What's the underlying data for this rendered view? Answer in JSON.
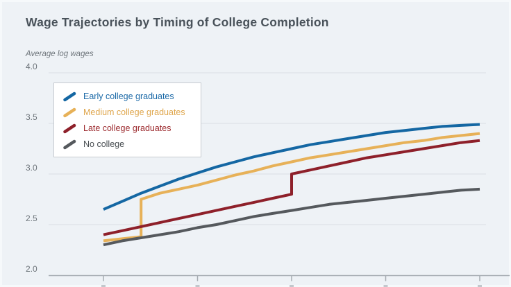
{
  "page": {
    "title": "Wage Trajectories by Timing of College Completion"
  },
  "chart_data": {
    "type": "line",
    "title": "Wage Trajectories by Timing of College Completion",
    "ylabel": "Average log wages",
    "xlabel": "",
    "ylim": [
      2.0,
      4.0
    ],
    "xlim": [
      0,
      20
    ],
    "grid": "horizontal",
    "legend_position": "top-left",
    "y_ticks": [
      {
        "value": 4.0,
        "label": "4.0"
      },
      {
        "value": 3.5,
        "label": "3.5"
      },
      {
        "value": 3.0,
        "label": "3.0"
      },
      {
        "value": 2.5,
        "label": "2.5"
      },
      {
        "value": 2.0,
        "label": "2.0"
      }
    ],
    "x_ticks": [
      0,
      5,
      10,
      15,
      20
    ],
    "x_tick_labels_visible": false,
    "series": [
      {
        "name": "Early college graduates",
        "color": "#1467a3",
        "label_color": "#1b69a7",
        "points": [
          [
            0,
            2.65
          ],
          [
            1,
            2.73
          ],
          [
            2,
            2.81
          ],
          [
            3,
            2.88
          ],
          [
            4,
            2.95
          ],
          [
            5,
            3.01
          ],
          [
            6,
            3.07
          ],
          [
            7,
            3.12
          ],
          [
            8,
            3.17
          ],
          [
            9,
            3.21
          ],
          [
            10,
            3.25
          ],
          [
            11,
            3.29
          ],
          [
            12,
            3.32
          ],
          [
            13,
            3.35
          ],
          [
            14,
            3.38
          ],
          [
            15,
            3.41
          ],
          [
            16,
            3.43
          ],
          [
            17,
            3.45
          ],
          [
            18,
            3.47
          ],
          [
            19,
            3.48
          ],
          [
            20,
            3.49
          ]
        ]
      },
      {
        "name": "Medium college graduates",
        "color": "#e7b158",
        "label_color": "#dfa64c",
        "jump_at_x": 2,
        "points": [
          [
            0,
            2.34
          ],
          [
            1,
            2.36
          ],
          [
            2,
            2.38
          ],
          [
            2,
            2.75
          ],
          [
            3,
            2.81
          ],
          [
            4,
            2.85
          ],
          [
            5,
            2.89
          ],
          [
            6,
            2.94
          ],
          [
            7,
            2.99
          ],
          [
            8,
            3.03
          ],
          [
            9,
            3.08
          ],
          [
            10,
            3.12
          ],
          [
            11,
            3.16
          ],
          [
            12,
            3.19
          ],
          [
            13,
            3.22
          ],
          [
            14,
            3.25
          ],
          [
            15,
            3.28
          ],
          [
            16,
            3.31
          ],
          [
            17,
            3.33
          ],
          [
            18,
            3.36
          ],
          [
            19,
            3.38
          ],
          [
            20,
            3.4
          ]
        ]
      },
      {
        "name": "Late college graduates",
        "color": "#8e202a",
        "label_color": "#9c2a2e",
        "jump_at_x": 10,
        "points": [
          [
            0,
            2.4
          ],
          [
            1,
            2.44
          ],
          [
            2,
            2.48
          ],
          [
            3,
            2.52
          ],
          [
            4,
            2.56
          ],
          [
            5,
            2.6
          ],
          [
            6,
            2.64
          ],
          [
            7,
            2.68
          ],
          [
            8,
            2.72
          ],
          [
            9,
            2.76
          ],
          [
            10,
            2.8
          ],
          [
            10,
            3.0
          ],
          [
            11,
            3.04
          ],
          [
            12,
            3.08
          ],
          [
            13,
            3.12
          ],
          [
            14,
            3.16
          ],
          [
            15,
            3.19
          ],
          [
            16,
            3.22
          ],
          [
            17,
            3.25
          ],
          [
            18,
            3.28
          ],
          [
            19,
            3.31
          ],
          [
            20,
            3.33
          ]
        ]
      },
      {
        "name": "No college",
        "color": "#55595d",
        "label_color": "#494e52",
        "points": [
          [
            0,
            2.3
          ],
          [
            1,
            2.34
          ],
          [
            2,
            2.37
          ],
          [
            3,
            2.4
          ],
          [
            4,
            2.43
          ],
          [
            5,
            2.47
          ],
          [
            6,
            2.5
          ],
          [
            7,
            2.54
          ],
          [
            8,
            2.58
          ],
          [
            9,
            2.61
          ],
          [
            10,
            2.64
          ],
          [
            11,
            2.67
          ],
          [
            12,
            2.7
          ],
          [
            13,
            2.72
          ],
          [
            14,
            2.74
          ],
          [
            15,
            2.76
          ],
          [
            16,
            2.78
          ],
          [
            17,
            2.8
          ],
          [
            18,
            2.82
          ],
          [
            19,
            2.84
          ],
          [
            20,
            2.85
          ]
        ]
      }
    ],
    "colors": {
      "background": "#eef2f6",
      "gridline": "#dadfe4",
      "axis": "#a6acb2",
      "title_text": "#49525a",
      "axis_text": "#6e757b",
      "legend_border": "#c6cbd0",
      "legend_background": "#ffffff"
    }
  }
}
